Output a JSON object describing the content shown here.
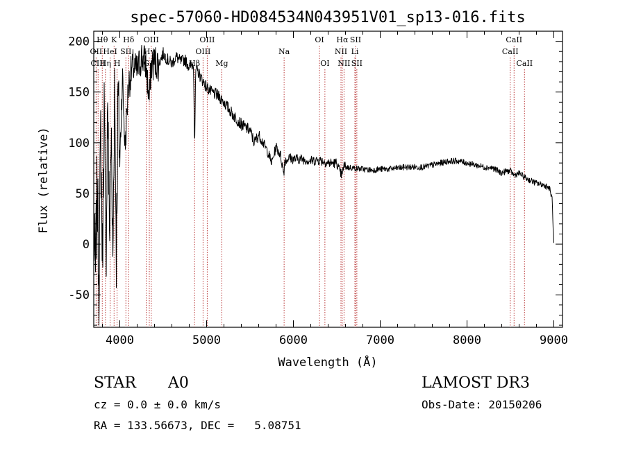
{
  "chart_data": {
    "type": "line",
    "title": "spec-57060-HD084534N043951V01_sp13-016.fits",
    "xlabel": "Wavelength (Å)",
    "ylabel": "Flux (relative)",
    "xlim": [
      3700,
      9100
    ],
    "ylim": [
      -82,
      210
    ],
    "xticks": [
      4000,
      5000,
      6000,
      7000,
      8000,
      9000
    ],
    "yticks": [
      -50,
      0,
      50,
      100,
      150,
      200
    ],
    "series": [
      {
        "name": "spectrum",
        "x": [
          3700,
          3720,
          3740,
          3760,
          3780,
          3800,
          3820,
          3840,
          3860,
          3880,
          3900,
          3920,
          3940,
          3960,
          3980,
          4000,
          4030,
          4060,
          4100,
          4150,
          4200,
          4250,
          4300,
          4340,
          4360,
          4400,
          4450,
          4500,
          4550,
          4600,
          4650,
          4700,
          4750,
          4800,
          4850,
          4862,
          4875,
          4900,
          4950,
          5000,
          5050,
          5100,
          5150,
          5200,
          5300,
          5400,
          5500,
          5550,
          5600,
          5650,
          5700,
          5750,
          5800,
          5850,
          5890,
          5900,
          5950,
          6000,
          6100,
          6200,
          6300,
          6400,
          6500,
          6540,
          6563,
          6580,
          6600,
          6700,
          6800,
          6900,
          7000,
          7100,
          7200,
          7300,
          7400,
          7500,
          7600,
          7700,
          7800,
          7900,
          8000,
          8100,
          8200,
          8300,
          8400,
          8450,
          8500,
          8542,
          8600,
          8662,
          8700,
          8800,
          8900,
          8950,
          8980,
          9000
        ],
        "y": [
          10,
          -30,
          60,
          -40,
          110,
          -15,
          140,
          -25,
          150,
          10,
          110,
          -20,
          165,
          -5,
          150,
          80,
          168,
          95,
          158,
          175,
          170,
          185,
          178,
          140,
          175,
          180,
          178,
          188,
          182,
          178,
          185,
          180,
          182,
          175,
          178,
          95,
          172,
          170,
          162,
          155,
          150,
          148,
          145,
          140,
          128,
          118,
          112,
          100,
          108,
          100,
          92,
          80,
          96,
          88,
          70,
          82,
          85,
          84,
          84,
          82,
          83,
          80,
          80,
          70,
          68,
          78,
          76,
          75,
          74,
          73,
          74,
          74,
          75,
          76,
          76,
          76,
          78,
          80,
          82,
          82,
          80,
          78,
          76,
          75,
          70,
          72,
          72,
          68,
          70,
          66,
          64,
          60,
          58,
          55,
          45,
          0
        ]
      }
    ],
    "lines": [
      {
        "label": "Hθ",
        "x": 3798,
        "row": 1
      },
      {
        "label": "OII",
        "x": 3727,
        "row": 2
      },
      {
        "label": "CIII",
        "x": 3750,
        "row": 3
      },
      {
        "label": "Hη",
        "x": 3835,
        "row": 3
      },
      {
        "label": "K",
        "x": 3934,
        "row": 1
      },
      {
        "label": "HeI",
        "x": 3889,
        "row": 2
      },
      {
        "label": "SII",
        "x": 4070,
        "row": 2
      },
      {
        "label": "H",
        "x": 3969,
        "row": 3
      },
      {
        "label": "Hδ",
        "x": 4102,
        "row": 1
      },
      {
        "label": "OIII",
        "x": 4363,
        "row": 1
      },
      {
        "label": "Hγ",
        "x": 4340,
        "row": 2
      },
      {
        "label": "G",
        "x": 4305,
        "row": 3
      },
      {
        "label": "Hβ",
        "x": 4861,
        "row": 3
      },
      {
        "label": "OIII",
        "x": 5007,
        "row": 1
      },
      {
        "label": "OIII",
        "x": 4959,
        "row": 2
      },
      {
        "label": "Mg",
        "x": 5175,
        "row": 3
      },
      {
        "label": "Na",
        "x": 5893,
        "row": 2
      },
      {
        "label": "OI",
        "x": 6300,
        "row": 1
      },
      {
        "label": "OI",
        "x": 6363,
        "row": 3
      },
      {
        "label": "Hα",
        "x": 6563,
        "row": 1
      },
      {
        "label": "NII",
        "x": 6548,
        "row": 2
      },
      {
        "label": "NII",
        "x": 6583,
        "row": 3
      },
      {
        "label": "SII",
        "x": 6716,
        "row": 1
      },
      {
        "label": "Li",
        "x": 6708,
        "row": 2
      },
      {
        "label": "SII",
        "x": 6731,
        "row": 3
      },
      {
        "label": "CaII",
        "x": 8542,
        "row": 1
      },
      {
        "label": "CaII",
        "x": 8498,
        "row": 2
      },
      {
        "label": "CaII",
        "x": 8662,
        "row": 3
      }
    ]
  },
  "info": {
    "object_class": "STAR",
    "subclass": "A0",
    "survey": "LAMOST DR3",
    "redshift": "cz = 0.0 ± 0.0 km/s",
    "obs_date": "Obs-Date: 20150206",
    "coords": "RA = 133.56673, DEC =   5.08751"
  },
  "colors": {
    "line_marker": "#b22222",
    "spectrum": "#000000"
  }
}
